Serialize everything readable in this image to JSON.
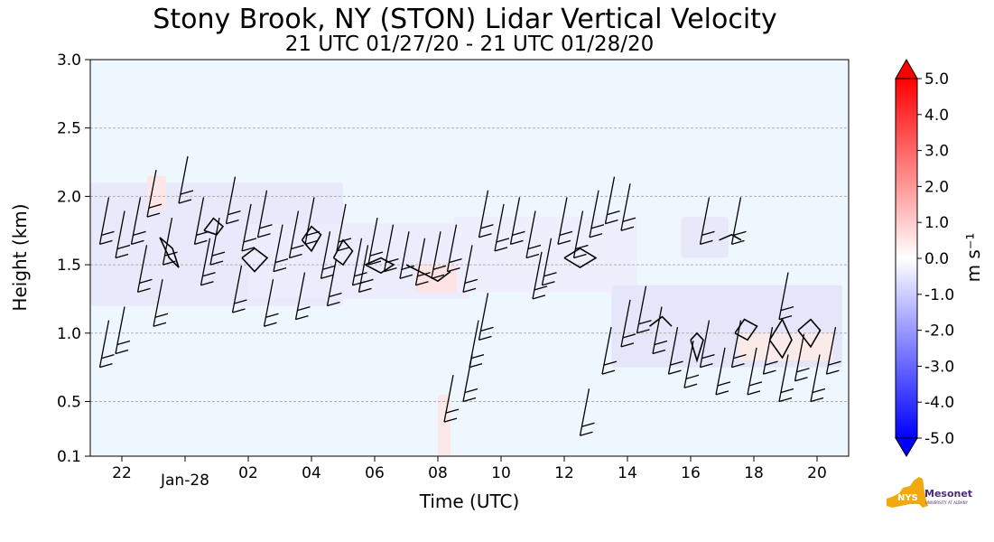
{
  "chart_data": {
    "type": "heatmap",
    "title": "Stony Brook, NY (STON) Lidar Vertical Velocity",
    "subtitle": "21 UTC 01/27/20 - 21 UTC 01/28/20",
    "xlabel": "Time (UTC)",
    "ylabel": "Height (km)",
    "xlim": [
      21,
      45
    ],
    "ylim": [
      0.1,
      3.0
    ],
    "x_ticks": [
      {
        "value": 22,
        "label": "22"
      },
      {
        "value": 24,
        "label": "Jan-28"
      },
      {
        "value": 26,
        "label": "02"
      },
      {
        "value": 28,
        "label": "04"
      },
      {
        "value": 30,
        "label": "06"
      },
      {
        "value": 32,
        "label": "08"
      },
      {
        "value": 34,
        "label": "10"
      },
      {
        "value": 36,
        "label": "12"
      },
      {
        "value": 38,
        "label": "14"
      },
      {
        "value": 40,
        "label": "16"
      },
      {
        "value": 42,
        "label": "18"
      },
      {
        "value": 44,
        "label": "20"
      }
    ],
    "y_ticks": [
      {
        "value": 0.1,
        "label": "0.1"
      },
      {
        "value": 0.5,
        "label": "0.5"
      },
      {
        "value": 1.0,
        "label": "1.0"
      },
      {
        "value": 1.5,
        "label": "1.5"
      },
      {
        "value": 2.0,
        "label": "2.0"
      },
      {
        "value": 2.5,
        "label": "2.5"
      },
      {
        "value": 3.0,
        "label": "3.0"
      }
    ],
    "grid_y": [
      0.5,
      1.0,
      1.5,
      2.0,
      2.5
    ],
    "colorbar": {
      "label": "m s⁻¹",
      "min": -5.0,
      "max": 5.0,
      "ticks": [
        "5.0",
        "4.0",
        "3.0",
        "2.0",
        "1.0",
        "0.0",
        "-1.0",
        "-2.0",
        "-3.0",
        "-4.0",
        "-5.0"
      ],
      "colors": {
        "high": "#ff0000",
        "mid": "#ffffff",
        "low": "#0000ff"
      }
    },
    "data_regions": [
      {
        "x0": 21.0,
        "x1": 29.0,
        "y0": 1.2,
        "y1": 2.1,
        "color": "#e9e9fc"
      },
      {
        "x0": 26.0,
        "x1": 33.0,
        "y0": 1.25,
        "y1": 1.8,
        "color": "#ececfd"
      },
      {
        "x0": 32.5,
        "x1": 38.3,
        "y0": 1.3,
        "y1": 1.85,
        "color": "#eeeefd"
      },
      {
        "x0": 37.5,
        "x1": 44.8,
        "y0": 0.75,
        "y1": 1.35,
        "color": "#e6e6fb"
      },
      {
        "x0": 39.7,
        "x1": 41.2,
        "y0": 1.55,
        "y1": 1.85,
        "color": "#e8e8fb"
      },
      {
        "x0": 31.3,
        "x1": 32.6,
        "y0": 1.3,
        "y1": 1.5,
        "color": "#fde3e3"
      },
      {
        "x0": 22.8,
        "x1": 23.4,
        "y0": 1.9,
        "y1": 2.15,
        "color": "#fde6e6"
      },
      {
        "x0": 32.0,
        "x1": 32.4,
        "y0": 0.1,
        "y1": 0.55,
        "color": "#fde8e8"
      },
      {
        "x0": 41.5,
        "x1": 44.5,
        "y0": 0.8,
        "y1": 1.0,
        "color": "#fbeaea"
      }
    ],
    "contours": [
      [
        [
          23.2,
          1.7
        ],
        [
          23.5,
          1.55
        ],
        [
          23.8,
          1.48
        ],
        [
          23.6,
          1.62
        ],
        [
          23.2,
          1.7
        ]
      ],
      [
        [
          24.6,
          1.75
        ],
        [
          25.0,
          1.72
        ],
        [
          25.2,
          1.78
        ],
        [
          24.9,
          1.84
        ],
        [
          24.6,
          1.75
        ]
      ],
      [
        [
          25.8,
          1.55
        ],
        [
          26.2,
          1.62
        ],
        [
          26.6,
          1.55
        ],
        [
          26.2,
          1.45
        ],
        [
          25.8,
          1.55
        ]
      ],
      [
        [
          27.7,
          1.68
        ],
        [
          28.0,
          1.78
        ],
        [
          28.3,
          1.72
        ],
        [
          28.0,
          1.6
        ],
        [
          27.7,
          1.68
        ]
      ],
      [
        [
          28.7,
          1.55
        ],
        [
          29.0,
          1.68
        ],
        [
          29.3,
          1.6
        ],
        [
          29.0,
          1.5
        ],
        [
          28.7,
          1.55
        ]
      ],
      [
        [
          29.7,
          1.5
        ],
        [
          30.2,
          1.55
        ],
        [
          30.6,
          1.5
        ],
        [
          30.2,
          1.44
        ],
        [
          29.7,
          1.5
        ]
      ],
      [
        [
          31.0,
          1.5
        ],
        [
          31.6,
          1.43
        ],
        [
          32.0,
          1.38
        ],
        [
          32.4,
          1.45
        ]
      ],
      [
        [
          36.0,
          1.55
        ],
        [
          36.5,
          1.62
        ],
        [
          37.0,
          1.55
        ],
        [
          36.5,
          1.48
        ],
        [
          36.0,
          1.55
        ]
      ],
      [
        [
          38.7,
          1.05
        ],
        [
          39.1,
          1.12
        ],
        [
          39.4,
          1.05
        ]
      ],
      [
        [
          40.0,
          0.95
        ],
        [
          40.2,
          0.8
        ],
        [
          40.4,
          0.95
        ],
        [
          40.2,
          1.0
        ],
        [
          40.0,
          0.95
        ]
      ],
      [
        [
          41.4,
          1.0
        ],
        [
          41.7,
          1.1
        ],
        [
          42.1,
          1.05
        ],
        [
          41.8,
          0.95
        ],
        [
          41.4,
          1.0
        ]
      ],
      [
        [
          42.5,
          0.95
        ],
        [
          42.9,
          1.1
        ],
        [
          43.2,
          0.95
        ],
        [
          42.9,
          0.82
        ],
        [
          42.5,
          0.95
        ]
      ],
      [
        [
          43.4,
          1.02
        ],
        [
          43.8,
          1.1
        ],
        [
          44.1,
          1.02
        ],
        [
          43.8,
          0.9
        ],
        [
          43.4,
          1.02
        ]
      ],
      [
        [
          40.9,
          1.68
        ],
        [
          41.3,
          1.72
        ],
        [
          41.6,
          1.68
        ]
      ]
    ],
    "barbs": [
      {
        "x": 21.3,
        "y": 1.65
      },
      {
        "x": 21.8,
        "y": 1.55
      },
      {
        "x": 22.3,
        "y": 1.65
      },
      {
        "x": 22.8,
        "y": 1.85
      },
      {
        "x": 23.3,
        "y": 1.5
      },
      {
        "x": 23.8,
        "y": 1.95
      },
      {
        "x": 24.3,
        "y": 1.65
      },
      {
        "x": 24.8,
        "y": 1.5
      },
      {
        "x": 25.3,
        "y": 1.8
      },
      {
        "x": 25.8,
        "y": 1.6
      },
      {
        "x": 26.3,
        "y": 1.7
      },
      {
        "x": 26.8,
        "y": 1.45
      },
      {
        "x": 27.3,
        "y": 1.55
      },
      {
        "x": 27.8,
        "y": 1.65
      },
      {
        "x": 28.3,
        "y": 1.4
      },
      {
        "x": 28.8,
        "y": 1.6
      },
      {
        "x": 29.3,
        "y": 1.35
      },
      {
        "x": 29.8,
        "y": 1.5
      },
      {
        "x": 30.3,
        "y": 1.45
      },
      {
        "x": 30.8,
        "y": 1.4
      },
      {
        "x": 31.3,
        "y": 1.35
      },
      {
        "x": 31.8,
        "y": 1.4
      },
      {
        "x": 32.3,
        "y": 1.45
      },
      {
        "x": 32.8,
        "y": 1.3
      },
      {
        "x": 33.3,
        "y": 1.7
      },
      {
        "x": 33.8,
        "y": 1.6
      },
      {
        "x": 34.3,
        "y": 1.65
      },
      {
        "x": 34.8,
        "y": 1.55
      },
      {
        "x": 35.3,
        "y": 1.35
      },
      {
        "x": 35.8,
        "y": 1.65
      },
      {
        "x": 36.3,
        "y": 1.55
      },
      {
        "x": 36.8,
        "y": 1.7
      },
      {
        "x": 37.3,
        "y": 1.8
      },
      {
        "x": 37.8,
        "y": 1.75
      },
      {
        "x": 21.3,
        "y": 0.75
      },
      {
        "x": 21.8,
        "y": 0.85
      },
      {
        "x": 22.5,
        "y": 1.3
      },
      {
        "x": 23.0,
        "y": 1.05
      },
      {
        "x": 24.5,
        "y": 1.35
      },
      {
        "x": 25.5,
        "y": 1.15
      },
      {
        "x": 26.5,
        "y": 1.05
      },
      {
        "x": 27.5,
        "y": 1.1
      },
      {
        "x": 28.5,
        "y": 1.2
      },
      {
        "x": 29.5,
        "y": 1.3
      },
      {
        "x": 32.2,
        "y": 0.35
      },
      {
        "x": 32.8,
        "y": 0.5
      },
      {
        "x": 33.0,
        "y": 0.75
      },
      {
        "x": 33.3,
        "y": 0.95
      },
      {
        "x": 35.0,
        "y": 1.25
      },
      {
        "x": 36.5,
        "y": 0.25
      },
      {
        "x": 37.2,
        "y": 0.7
      },
      {
        "x": 37.8,
        "y": 0.9
      },
      {
        "x": 38.3,
        "y": 1.0
      },
      {
        "x": 38.8,
        "y": 0.85
      },
      {
        "x": 39.3,
        "y": 0.7
      },
      {
        "x": 39.8,
        "y": 0.6
      },
      {
        "x": 40.3,
        "y": 0.75
      },
      {
        "x": 40.8,
        "y": 0.55
      },
      {
        "x": 41.3,
        "y": 0.75
      },
      {
        "x": 41.8,
        "y": 0.55
      },
      {
        "x": 42.3,
        "y": 0.7
      },
      {
        "x": 42.8,
        "y": 0.5
      },
      {
        "x": 43.3,
        "y": 0.65
      },
      {
        "x": 43.8,
        "y": 0.5
      },
      {
        "x": 44.3,
        "y": 0.7
      },
      {
        "x": 40.3,
        "y": 1.65
      },
      {
        "x": 41.3,
        "y": 1.65
      },
      {
        "x": 42.8,
        "y": 1.1
      }
    ]
  },
  "logo": {
    "text": "NYS",
    "brand": "Mesonet",
    "sub": "UNIVERSITY AT ALBANY",
    "color_state": "#f2a90f",
    "color_text": "#4b2a7b"
  }
}
